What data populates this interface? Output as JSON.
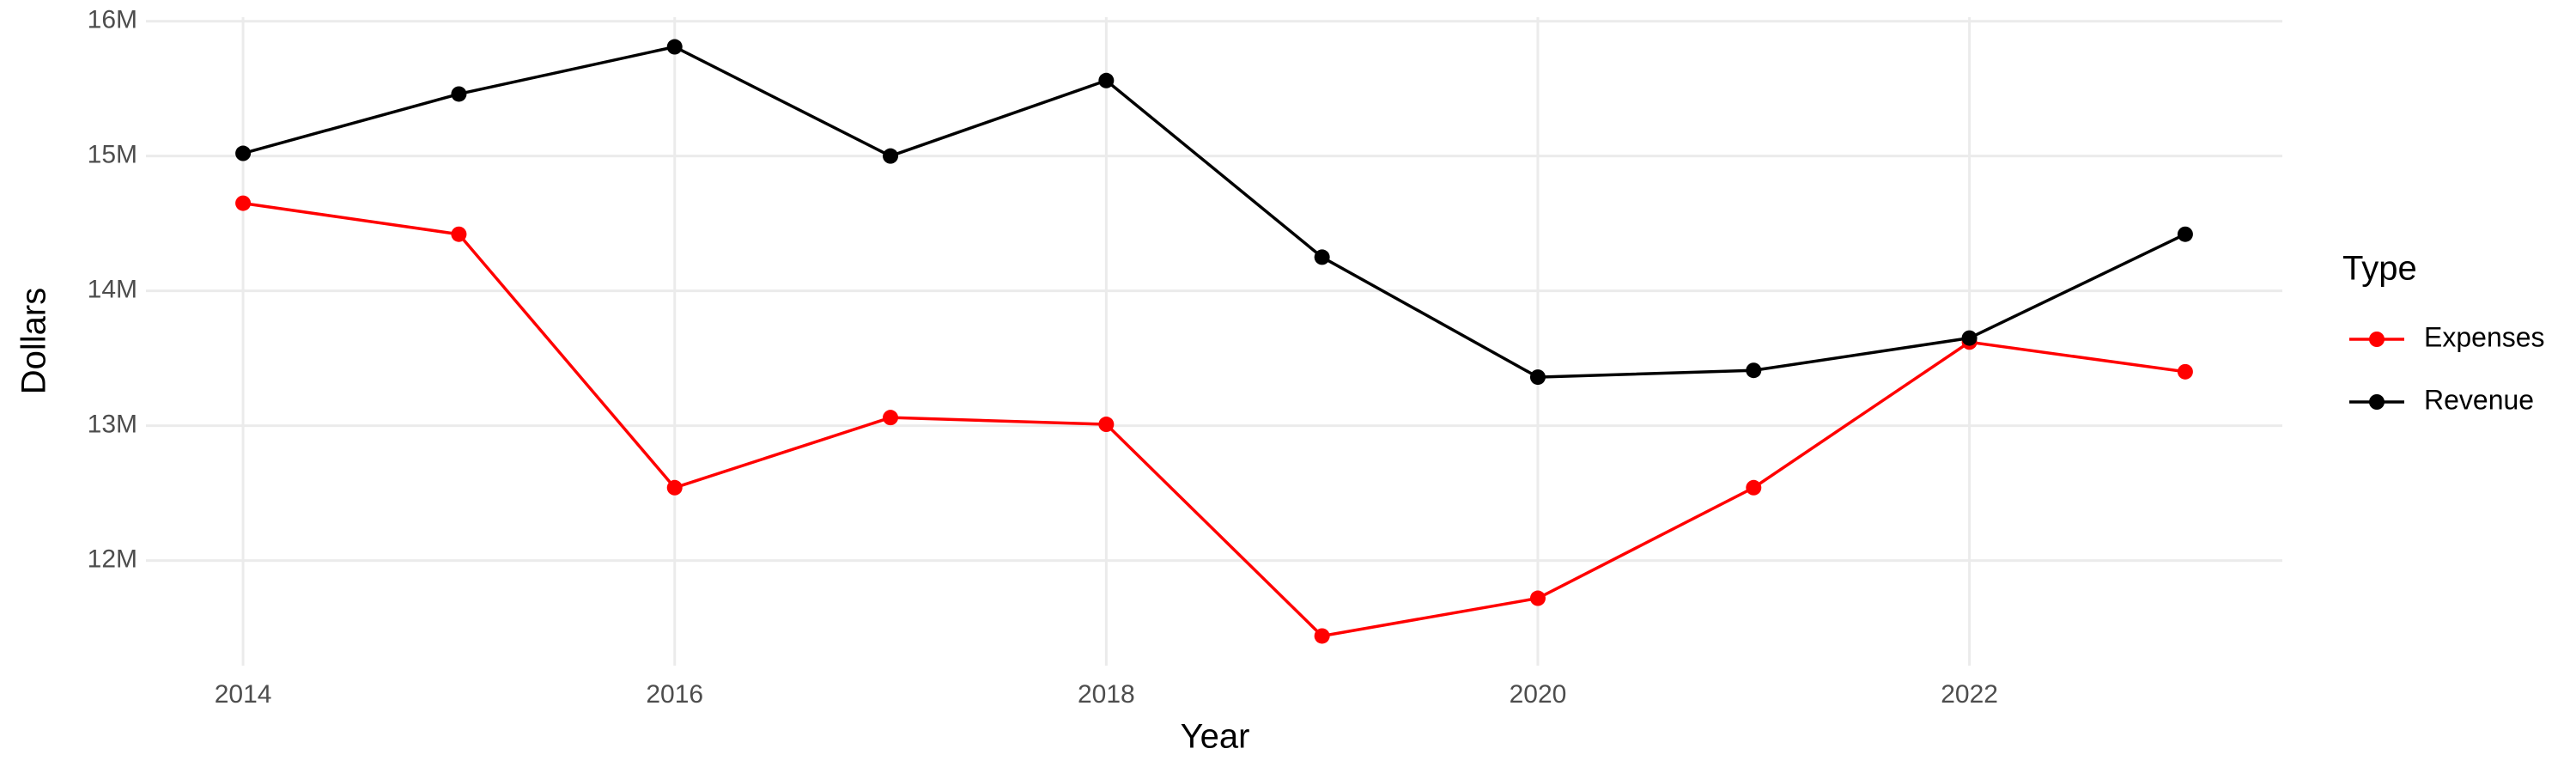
{
  "chart_data": {
    "type": "line",
    "x_label": "Year",
    "y_label": "Dollars",
    "x": [
      2014,
      2015,
      2016,
      2017,
      2018,
      2019,
      2020,
      2021,
      2022,
      2023
    ],
    "series": [
      {
        "name": "Expenses",
        "color": "#ff0000",
        "values": [
          14650000,
          14420000,
          12540000,
          13060000,
          13010000,
          11440000,
          11720000,
          12540000,
          13620000,
          13400000
        ]
      },
      {
        "name": "Revenue",
        "color": "#000000",
        "values": [
          15020000,
          15460000,
          15810000,
          15000000,
          15560000,
          14250000,
          13360000,
          13410000,
          13650000,
          14420000
        ]
      }
    ],
    "xlim": [
      2013.55,
      2023.45
    ],
    "xticks": [
      2014,
      2016,
      2018,
      2020,
      2022
    ],
    "ylim": [
      11220000,
      16030000
    ],
    "yticks": [
      {
        "value": 12000000,
        "label": "12M"
      },
      {
        "value": 13000000,
        "label": "13M"
      },
      {
        "value": 14000000,
        "label": "14M"
      },
      {
        "value": 15000000,
        "label": "15M"
      },
      {
        "value": 16000000,
        "label": "16M"
      }
    ],
    "grid": true,
    "legend_title": "Type",
    "legend_position": "right"
  }
}
